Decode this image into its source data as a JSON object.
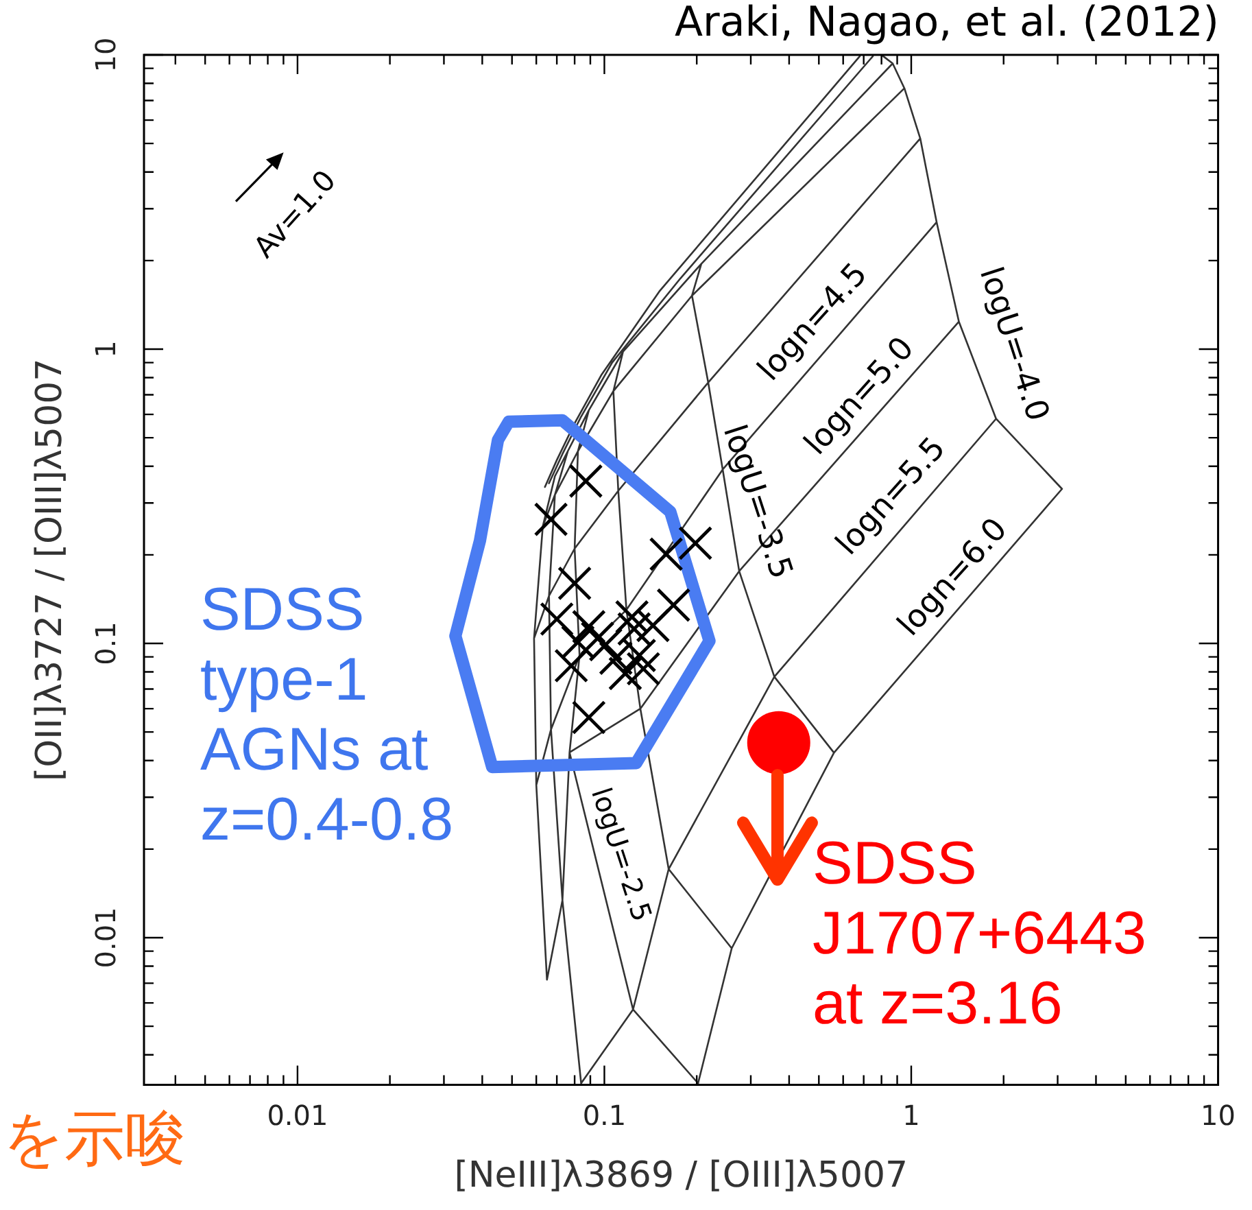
{
  "chart_data": {
    "type": "scatter",
    "title": "Araki, Nagao, et al. (2012)",
    "xlabel": "[NeIII]λ3869 / [OIII]λ5007",
    "ylabel": "[OII]λ3727 / [OIII]λ5007",
    "log": "xy",
    "grid": false,
    "xlim": [
      0.00316,
      10
    ],
    "ylim": [
      0.00316,
      10
    ],
    "xticks": [
      {
        "value": 0.004,
        "label": null
      },
      {
        "value": 0.005,
        "label": null
      },
      {
        "value": 0.006,
        "label": null
      },
      {
        "value": 0.007,
        "label": null
      },
      {
        "value": 0.008,
        "label": null
      },
      {
        "value": 0.009,
        "label": null
      },
      0.01,
      {
        "value": 0.02,
        "label": null
      },
      {
        "value": 0.03,
        "label": null
      },
      {
        "value": 0.04,
        "label": null
      },
      {
        "value": 0.05,
        "label": null
      },
      {
        "value": 0.06,
        "label": null
      },
      {
        "value": 0.07,
        "label": null
      },
      {
        "value": 0.08,
        "label": null
      },
      {
        "value": 0.09,
        "label": null
      },
      0.1,
      {
        "value": 0.2,
        "label": null
      },
      {
        "value": 0.3,
        "label": null
      },
      {
        "value": 0.4,
        "label": null
      },
      {
        "value": 0.5,
        "label": null
      },
      {
        "value": 0.6,
        "label": null
      },
      {
        "value": 0.7,
        "label": null
      },
      {
        "value": 0.8,
        "label": null
      },
      {
        "value": 0.9,
        "label": null
      },
      1,
      {
        "value": 2,
        "label": null
      },
      {
        "value": 3,
        "label": null
      },
      {
        "value": 4,
        "label": null
      },
      {
        "value": 5,
        "label": null
      },
      {
        "value": 6,
        "label": null
      },
      {
        "value": 7,
        "label": null
      },
      {
        "value": 8,
        "label": null
      },
      {
        "value": 9,
        "label": null
      },
      10
    ],
    "yticks": [
      {
        "value": 0.004,
        "label": null
      },
      {
        "value": 0.005,
        "label": null
      },
      {
        "value": 0.006,
        "label": null
      },
      {
        "value": 0.007,
        "label": null
      },
      {
        "value": 0.008,
        "label": null
      },
      {
        "value": 0.009,
        "label": null
      },
      0.01,
      {
        "value": 0.02,
        "label": null
      },
      {
        "value": 0.03,
        "label": null
      },
      {
        "value": 0.04,
        "label": null
      },
      {
        "value": 0.05,
        "label": null
      },
      {
        "value": 0.06,
        "label": null
      },
      {
        "value": 0.07,
        "label": null
      },
      {
        "value": 0.08,
        "label": null
      },
      {
        "value": 0.09,
        "label": null
      },
      0.1,
      {
        "value": 0.2,
        "label": null
      },
      {
        "value": 0.3,
        "label": null
      },
      {
        "value": 0.4,
        "label": null
      },
      {
        "value": 0.5,
        "label": null
      },
      {
        "value": 0.6,
        "label": null
      },
      {
        "value": 0.7,
        "label": null
      },
      {
        "value": 0.8,
        "label": null
      },
      {
        "value": 0.9,
        "label": null
      },
      1,
      {
        "value": 2,
        "label": null
      },
      {
        "value": 3,
        "label": null
      },
      {
        "value": 4,
        "label": null
      },
      {
        "value": 5,
        "label": null
      },
      {
        "value": 6,
        "label": null
      },
      {
        "value": 7,
        "label": null
      },
      {
        "value": 8,
        "label": null
      },
      {
        "value": 9,
        "label": null
      },
      10
    ],
    "series": [
      {
        "type": "line",
        "color": "#333333",
        "marker": "none",
        "x": [
          0.68,
          0.151,
          0.098,
          0.08,
          0.07,
          0.064,
          null,
          0.75,
          0.177,
          0.106,
          0.084,
          0.073,
          0.066,
          null,
          0.87,
          0.207,
          0.115,
          0.089,
          0.076,
          0.069,
          null,
          0.95,
          0.193,
          0.107,
          0.082,
          0.069,
          0.063,
          null,
          1.07,
          0.218,
          0.111,
          0.08,
          0.066,
          0.059,
          null,
          1.21,
          0.243,
          0.118,
          0.083,
          0.067,
          0.06,
          null,
          1.43,
          0.275,
          0.131,
          0.077,
          0.073,
          0.065,
          null,
          1.89,
          0.358,
          0.162,
          0.124,
          0.084,
          null,
          3.1,
          0.56,
          0.26,
          0.202,
          null,
          0.81,
          0.87,
          0.95,
          1.07,
          1.21,
          1.43,
          1.89,
          3.1,
          null,
          0.207,
          0.193,
          0.218,
          0.243,
          0.275,
          0.358,
          0.56,
          null,
          0.115,
          0.107,
          0.111,
          0.118,
          0.131,
          0.162,
          0.26,
          null,
          0.089,
          0.082,
          0.08,
          0.083,
          0.077,
          0.124,
          0.202,
          null,
          0.076,
          0.069,
          0.066,
          0.067,
          0.073,
          0.084,
          null,
          0.069,
          0.063,
          0.059,
          0.06,
          0.065
        ],
        "values": [
          9.9,
          1.57,
          0.82,
          0.56,
          0.42,
          0.34,
          null,
          9.9,
          1.74,
          0.9,
          0.59,
          0.44,
          0.35,
          null,
          9.35,
          1.95,
          0.98,
          0.62,
          0.45,
          0.37,
          null,
          7.7,
          1.52,
          0.72,
          0.45,
          0.32,
          0.25,
          null,
          5.2,
          0.77,
          0.33,
          0.21,
          0.145,
          0.104,
          null,
          2.7,
          0.39,
          0.13,
          0.091,
          0.051,
          0.033,
          null,
          1.24,
          0.176,
          0.06,
          0.0426,
          0.0134,
          0.0072,
          null,
          0.58,
          0.077,
          0.0171,
          0.0057,
          0.0032,
          null,
          0.335,
          0.0425,
          0.0092,
          0.0032,
          null,
          9.9,
          9.35,
          7.7,
          5.2,
          2.7,
          1.24,
          0.58,
          0.335,
          null,
          1.95,
          1.52,
          0.77,
          0.39,
          0.176,
          0.077,
          0.0425,
          null,
          0.98,
          0.72,
          0.33,
          0.13,
          0.06,
          0.0171,
          0.0092,
          null,
          0.62,
          0.45,
          0.21,
          0.091,
          0.0426,
          0.0057,
          0.0032,
          null,
          0.45,
          0.32,
          0.145,
          0.051,
          0.0134,
          0.0032,
          null,
          0.37,
          0.25,
          0.104,
          0.033,
          0.0072
        ]
      },
      {
        "type": "line",
        "color": "#4a7cf2",
        "marker": "none",
        "x": [
          0.0327,
          0.0393,
          0.045,
          0.0488,
          0.0729,
          0.164,
          0.22,
          null,
          0.0327,
          0.0431,
          0.127,
          0.22
        ],
        "values": [
          0.106,
          0.223,
          0.491,
          0.567,
          0.573,
          0.28,
          0.102,
          null,
          0.106,
          0.038,
          0.0392,
          0.102
        ]
      },
      {
        "type": "scatter",
        "color": "#000000",
        "marker": "cross",
        "x": [
          0.087,
          0.067,
          0.159,
          0.198,
          0.08,
          0.168,
          0.123,
          0.07,
          0.089,
          0.095,
          0.101,
          0.125,
          0.109,
          0.13,
          0.134,
          0.078,
          0.117,
          0.089,
          0.082,
          0.144
        ],
        "values": [
          0.356,
          0.264,
          0.201,
          0.219,
          0.16,
          0.135,
          0.123,
          0.121,
          0.114,
          0.104,
          0.099,
          0.112,
          0.089,
          0.091,
          0.082,
          0.084,
          0.079,
          0.056,
          0.101,
          0.115
        ]
      },
      {
        "type": "scatter",
        "color": "#ff0000",
        "marker": "circle",
        "x": [
          0.37
        ],
        "values": [
          0.046
        ]
      }
    ],
    "annotations": [
      "Av=1.0",
      "logn=4.5",
      "logn=5.0",
      "logn=5.5",
      "logn=6.0",
      "logU=-4.0",
      "logU=-3.5",
      "logU=-2.5",
      "SDSS\ntype-1\nAGNs at\nz=0.4-0.8",
      "SDSS\nJ1707+6443\nat z=3.16",
      "を示唆"
    ]
  }
}
